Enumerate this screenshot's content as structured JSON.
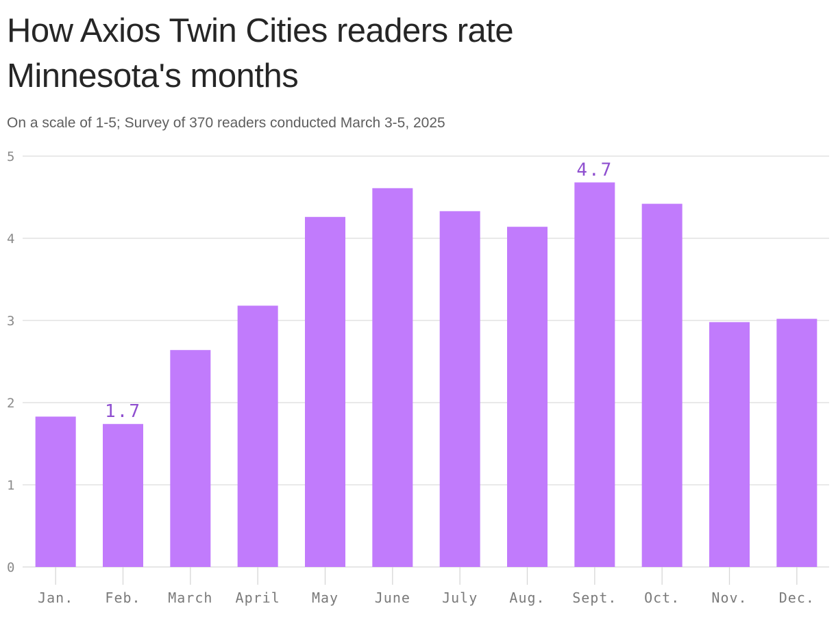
{
  "chart": {
    "title": "How Axios Twin Cities readers rate Minnesota's months",
    "subtitle": "On a scale of 1-5; Survey of 370 readers conducted March 3-5, 2025"
  },
  "chart_data": {
    "type": "bar",
    "title": "How Axios Twin Cities readers rate Minnesota's months",
    "subtitle": "On a scale of 1-5; Survey of 370 readers conducted March 3-5, 2025",
    "categories": [
      "Jan.",
      "Feb.",
      "March",
      "April",
      "May",
      "June",
      "July",
      "Aug.",
      "Sept.",
      "Oct.",
      "Nov.",
      "Dec."
    ],
    "values": [
      1.83,
      1.74,
      2.64,
      3.18,
      4.26,
      4.61,
      4.33,
      4.14,
      4.68,
      4.42,
      2.98,
      3.02
    ],
    "data_labels": [
      {
        "category": "Feb.",
        "text": "1.7"
      },
      {
        "category": "Sept.",
        "text": "4.7"
      }
    ],
    "yticks": [
      "0",
      "1",
      "2",
      "3",
      "4",
      "5"
    ],
    "ylim": [
      0,
      5
    ],
    "xlabel": "",
    "ylabel": "",
    "grid": true,
    "bar_color": "#c17bfc",
    "label_color": "#8e4ecf"
  }
}
